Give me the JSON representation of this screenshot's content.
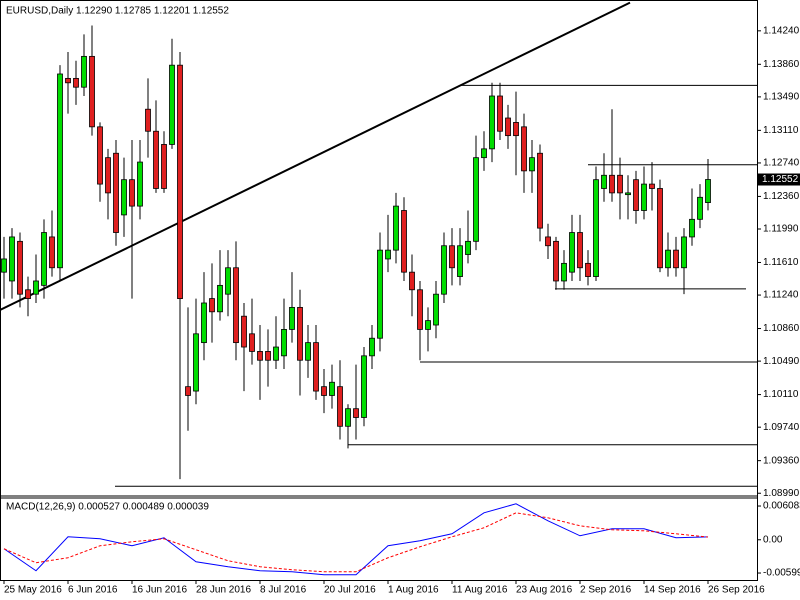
{
  "chart_data": [
    {
      "type": "candlestick",
      "title": "EURUSD,Daily  1.12290 1.12785 1.12201 1.12552",
      "categories": [
        "25 May 2016",
        null,
        null,
        null,
        null,
        null,
        null,
        null,
        "6 Jun 2016",
        null,
        null,
        null,
        null,
        null,
        null,
        null,
        "16 Jun 2016",
        null,
        null,
        null,
        null,
        null,
        null,
        null,
        "28 Jun 2016",
        null,
        null,
        null,
        null,
        null,
        null,
        null,
        "8 Jul 2016",
        null,
        null,
        null,
        null,
        null,
        null,
        null,
        "20 Jul 2016",
        null,
        null,
        null,
        null,
        null,
        null,
        null,
        "1 Aug 2016",
        null,
        null,
        null,
        null,
        null,
        null,
        null,
        "11 Aug 2016",
        null,
        null,
        null,
        null,
        null,
        null,
        null,
        "23 Aug 2016",
        null,
        null,
        null,
        null,
        null,
        null,
        null,
        "2 Sep 2016",
        null,
        null,
        null,
        null,
        null,
        null,
        null,
        "14 Sep 2016",
        null,
        null,
        null,
        null,
        null,
        null,
        null,
        "26 Sep 2016"
      ],
      "open": [
        1.115,
        1.114,
        1.1185,
        1.113,
        1.1125,
        1.1135,
        1.119,
        1.1155,
        1.137,
        1.137,
        1.136,
        1.1395,
        1.1315,
        1.128,
        1.1285,
        1.1215,
        1.1255,
        1.1225,
        1.1335,
        1.131,
        1.1295,
        1.1295,
        1.1385,
        1.102,
        1.1015,
        1.107,
        1.112,
        1.1105,
        1.1125,
        1.1155,
        1.11,
        1.108,
        1.106,
        1.106,
        1.105,
        1.1055,
        1.1085,
        1.111,
        1.105,
        1.107,
        1.102,
        1.101,
        1.102,
        1.0975,
        1.0995,
        1.0985,
        1.1055,
        1.1075,
        1.1165,
        1.1175,
        1.122,
        1.115,
        1.113,
        1.1085,
        1.109,
        1.1125,
        1.118,
        1.1145,
        1.117,
        1.1185,
        1.128,
        1.129,
        1.135,
        1.1325,
        1.132,
        1.1315,
        1.1265,
        1.1285,
        1.119,
        1.1185,
        1.114,
        1.115,
        1.1195,
        1.116,
        1.1145,
        1.1245,
        1.126,
        1.126,
        1.1238,
        1.1255,
        1.122,
        1.125,
        1.1245,
        1.1155,
        1.1175,
        1.1155,
        1.119,
        1.121,
        1.1229
      ],
      "high": [
        1.119,
        1.12,
        1.1195,
        1.1145,
        1.117,
        1.121,
        1.122,
        1.1385,
        1.14,
        1.139,
        1.142,
        1.143,
        1.132,
        1.129,
        1.13,
        1.128,
        1.13,
        1.13,
        1.137,
        1.1345,
        1.131,
        1.1415,
        1.14,
        1.111,
        1.112,
        1.115,
        1.116,
        1.1175,
        1.1175,
        1.1185,
        1.1115,
        1.112,
        1.109,
        1.1085,
        1.11,
        1.112,
        1.115,
        1.113,
        1.109,
        1.109,
        1.104,
        1.1045,
        1.105,
        1.1,
        1.1045,
        1.1065,
        1.109,
        1.1195,
        1.1215,
        1.124,
        1.1235,
        1.117,
        1.114,
        1.111,
        1.114,
        1.1195,
        1.12,
        1.12,
        1.122,
        1.1305,
        1.131,
        1.1365,
        1.1365,
        1.134,
        1.1355,
        1.133,
        1.13,
        1.1295,
        1.1205,
        1.119,
        1.1175,
        1.1215,
        1.1215,
        1.1175,
        1.127,
        1.1285,
        1.1335,
        1.128,
        1.126,
        1.1265,
        1.127,
        1.1275,
        1.1255,
        1.1195,
        1.119,
        1.12,
        1.1245,
        1.125,
        1.12785
      ],
      "low": [
        1.112,
        1.112,
        1.111,
        1.11,
        1.1115,
        1.112,
        1.1145,
        1.114,
        1.133,
        1.134,
        1.135,
        1.1305,
        1.123,
        1.121,
        1.118,
        1.119,
        1.112,
        1.121,
        1.128,
        1.124,
        1.124,
        1.129,
        1.0915,
        1.097,
        1.1,
        1.105,
        1.107,
        1.1095,
        1.11,
        1.105,
        1.1015,
        1.1045,
        1.1005,
        1.102,
        1.104,
        1.104,
        1.107,
        1.101,
        1.103,
        1.1005,
        1.099,
        1.0995,
        1.096,
        1.095,
        1.096,
        1.0975,
        1.104,
        1.106,
        1.115,
        1.116,
        1.114,
        1.11,
        1.105,
        1.106,
        1.1075,
        1.1115,
        1.1135,
        1.1135,
        1.116,
        1.1175,
        1.1265,
        1.1275,
        1.13,
        1.129,
        1.126,
        1.124,
        1.124,
        1.1185,
        1.1165,
        1.113,
        1.113,
        1.114,
        1.114,
        1.1135,
        1.114,
        1.123,
        1.123,
        1.121,
        1.121,
        1.1205,
        1.121,
        1.122,
        1.115,
        1.1145,
        1.1145,
        1.1125,
        1.118,
        1.12,
        1.12201
      ],
      "close": [
        1.1165,
        1.119,
        1.1125,
        1.112,
        1.114,
        1.1195,
        1.1155,
        1.1375,
        1.1365,
        1.136,
        1.1395,
        1.1315,
        1.125,
        1.124,
        1.1195,
        1.1255,
        1.1225,
        1.1275,
        1.131,
        1.1245,
        1.1245,
        1.1385,
        1.112,
        1.101,
        1.108,
        1.1115,
        1.1105,
        1.1135,
        1.1155,
        1.107,
        1.1065,
        1.106,
        1.105,
        1.105,
        1.1065,
        1.1085,
        1.111,
        1.105,
        1.107,
        1.1015,
        1.101,
        1.1025,
        1.0975,
        1.0995,
        1.0985,
        1.1055,
        1.1075,
        1.1175,
        1.1175,
        1.1225,
        1.115,
        1.113,
        1.1085,
        1.1095,
        1.1125,
        1.118,
        1.1155,
        1.118,
        1.1185,
        1.128,
        1.129,
        1.135,
        1.131,
        1.1305,
        1.1305,
        1.1265,
        1.128,
        1.12,
        1.118,
        1.114,
        1.116,
        1.1195,
        1.1155,
        1.1145,
        1.1255,
        1.126,
        1.124,
        1.124,
        1.124,
        1.122,
        1.125,
        1.1245,
        1.1155,
        1.1175,
        1.1155,
        1.119,
        1.121,
        1.1235,
        1.12552
      ],
      "up_color": "#00dd00",
      "down_color": "#e02020",
      "xlim": [
        -0.5,
        94.125
      ],
      "ylim": [
        1.0897,
        1.1459
      ],
      "yticks": [
        {
          "value": 1.1424,
          "label": "1.14240"
        },
        {
          "value": 1.1386,
          "label": "1.13860"
        },
        {
          "value": 1.1349,
          "label": "1.13490"
        },
        {
          "value": 1.1311,
          "label": "1.13110"
        },
        {
          "value": 1.1274,
          "label": "1.12740"
        },
        {
          "value": 1.1236,
          "label": "1.12360"
        },
        {
          "value": 1.1199,
          "label": "1.11990"
        },
        {
          "value": 1.1161,
          "label": "1.11610"
        },
        {
          "value": 1.1124,
          "label": "1.11240"
        },
        {
          "value": 1.1086,
          "label": "1.10860"
        },
        {
          "value": 1.1049,
          "label": "1.10490"
        },
        {
          "value": 1.1011,
          "label": "1.10110"
        },
        {
          "value": 1.0974,
          "label": "1.09740"
        },
        {
          "value": 1.0936,
          "label": "1.09360"
        },
        {
          "value": 1.0899,
          "label": "1.08990"
        }
      ],
      "last_price": {
        "value": 1.12552,
        "label": "1.12552"
      },
      "trendlines": [
        {
          "x": [
            -0.5,
            78.25
          ],
          "y": [
            1.1107,
            1.1456
          ]
        }
      ],
      "hlines": [
        {
          "x": [
            57,
            94.125
          ],
          "y": 1.1362
        },
        {
          "x": [
            73,
            94.125
          ],
          "y": 1.1272
        },
        {
          "x": [
            68.875,
            92.75
          ],
          "y": 1.1131
        },
        {
          "x": [
            52,
            94.125
          ],
          "y": 1.1048
        },
        {
          "x": [
            43,
            94.125
          ],
          "y": 1.0954
        },
        {
          "x": [
            13.875,
            94.125
          ],
          "y": 1.0907
        }
      ]
    },
    {
      "type": "line",
      "title": "MACD(12,26,9) 0.000527 0.000489 0.000039",
      "x": [
        0,
        4,
        8,
        12,
        16,
        20,
        24,
        28,
        32,
        36,
        40,
        44,
        48,
        52,
        56,
        60,
        64,
        68,
        72,
        76,
        80,
        84,
        88
      ],
      "xlim": [
        -0.5,
        94.125
      ],
      "ylim": [
        -0.00725,
        0.00771
      ],
      "yticks": [
        0.006083,
        {
          "value": 0,
          "label": "0.00"
        },
        -0.005993
      ],
      "series": [
        {
          "color": "#0000ff",
          "dashed": false,
          "values": [
            -0.00162,
            -0.00558,
            0.00054,
            0.00018,
            -0.00108,
            0.00036,
            -0.00396,
            -0.00486,
            -0.00558,
            -0.00576,
            -0.0063,
            -0.0063,
            -0.00108,
            -0.00018,
            0.00108,
            0.00486,
            0.00648,
            0.00342,
            0.00072,
            0.00198,
            0.00198,
            0.00036,
            0.000527
          ]
        },
        {
          "color": "#ff0000",
          "dashed": true,
          "values": [
            -0.00162,
            -0.00414,
            -0.00324,
            -0.00108,
            -0.00036,
            0.00018,
            -0.0018,
            -0.00378,
            -0.00486,
            -0.0054,
            -0.00576,
            -0.00576,
            -0.00324,
            -0.00126,
            0.00054,
            0.00216,
            0.00486,
            0.00396,
            0.00252,
            0.0018,
            0.00162,
            0.00108,
            0.000489
          ]
        }
      ]
    }
  ]
}
